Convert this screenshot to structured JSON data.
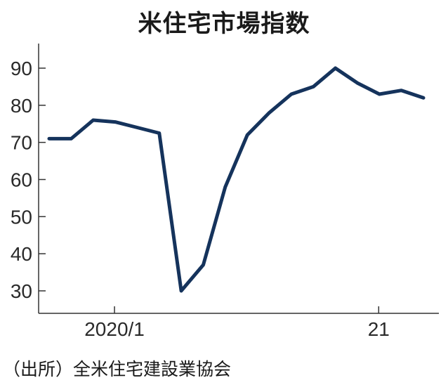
{
  "title": "米住宅市場指数",
  "source": "（出所）全米住宅建設業協会",
  "colors": {
    "line": "#15335c",
    "axis": "#333333"
  },
  "chart_data": {
    "type": "line",
    "title": "米住宅市場指数",
    "xlabel": "",
    "ylabel": "",
    "x_tick_labels": [
      {
        "label": "2020/1",
        "index": 3
      },
      {
        "label": "21",
        "index": 15
      }
    ],
    "y_ticks": [
      30,
      40,
      50,
      60,
      70,
      80,
      90
    ],
    "ylim": [
      26,
      96
    ],
    "grid": false,
    "series": [
      {
        "values": [
          71,
          71,
          76,
          75.5,
          74,
          72.5,
          30,
          37,
          58,
          72,
          78,
          83,
          85,
          90,
          86,
          83,
          84,
          82
        ]
      }
    ]
  }
}
